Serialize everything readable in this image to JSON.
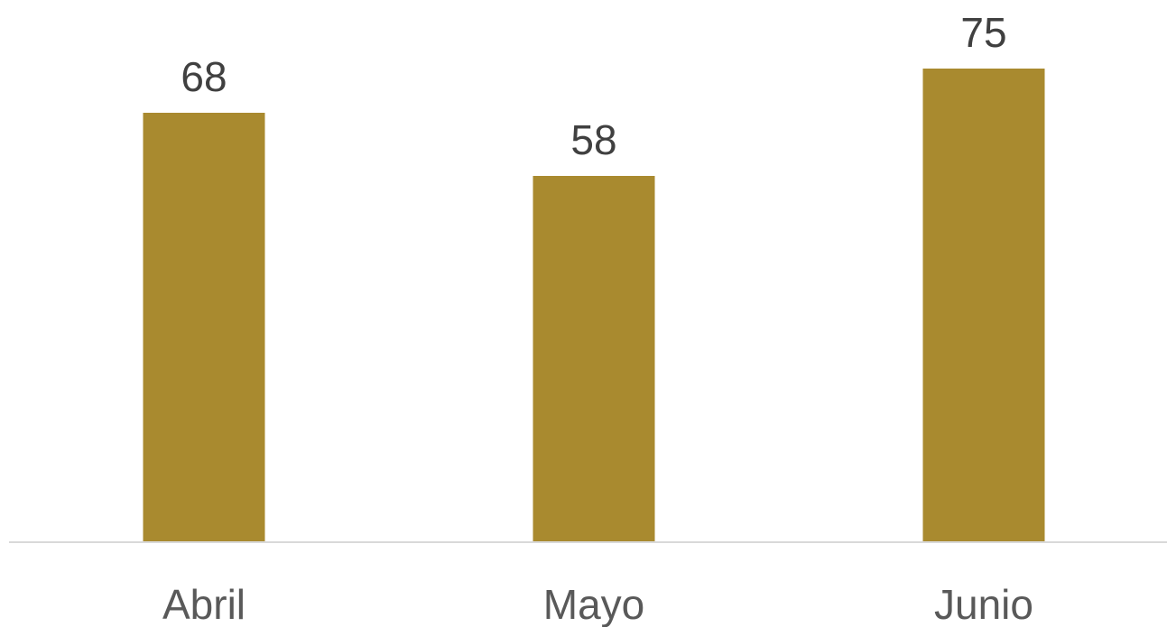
{
  "chart_data": {
    "type": "bar",
    "title": "",
    "xlabel": "",
    "ylabel": "",
    "categories": [
      "Abril",
      "Mayo",
      "Junio"
    ],
    "series": [
      {
        "values": [
          68,
          58,
          75
        ],
        "color": "#A98A2F"
      }
    ],
    "ylim": [
      0,
      80
    ],
    "data_labels": true,
    "grid": false,
    "legend": "none",
    "axis_color": "#D9D9D9"
  }
}
